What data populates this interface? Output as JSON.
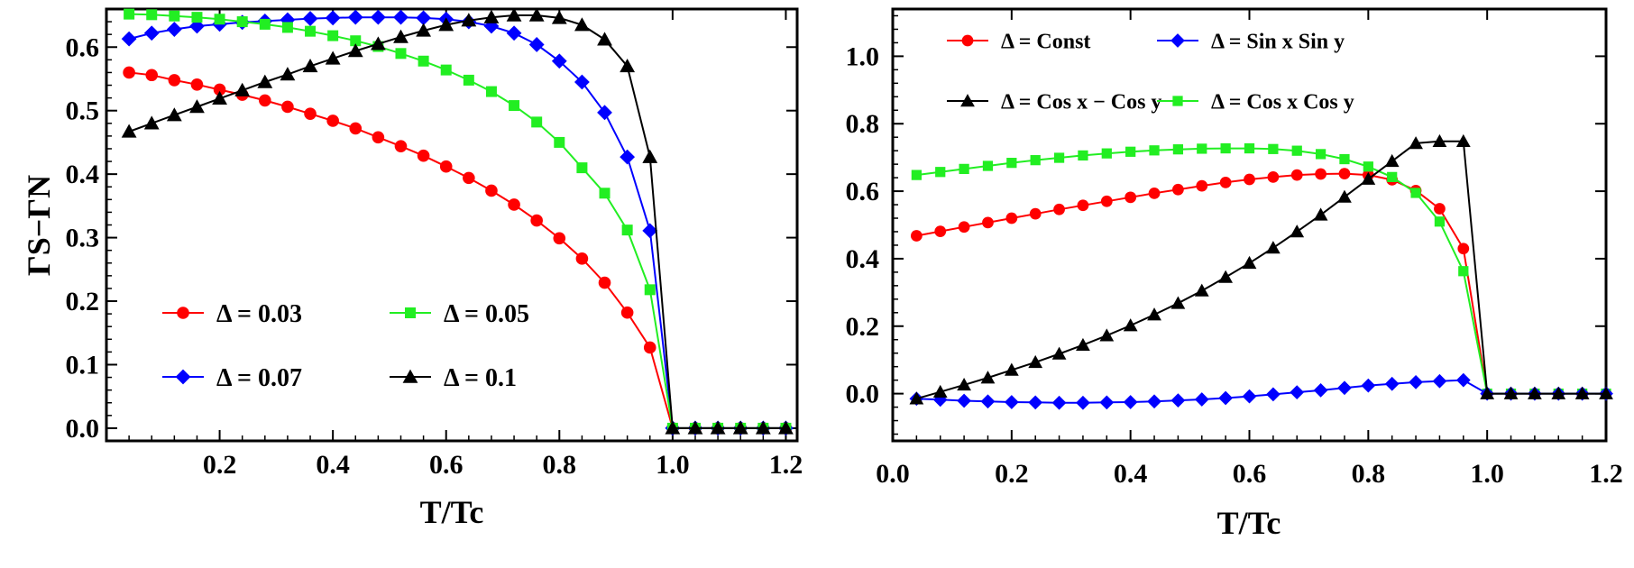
{
  "chart_data": [
    {
      "type": "line",
      "xlim": [
        0,
        1.22
      ],
      "ylim": [
        -0.02,
        0.66
      ],
      "xticks": [
        0.2,
        0.4,
        0.6,
        0.8,
        1.0,
        1.2
      ],
      "xtick_labels": [
        "0.2",
        "0.4",
        "0.6",
        "0.8",
        "1.0",
        "1.2"
      ],
      "yticks": [
        0.0,
        0.1,
        0.2,
        0.3,
        0.4,
        0.5,
        0.6
      ],
      "ytick_labels": [
        "0.0",
        "0.1",
        "0.2",
        "0.3",
        "0.4",
        "0.5",
        "0.6"
      ],
      "xlabel": "T/Tc",
      "ylabel": "ΓS−ΓN",
      "legend": "bottom-left, two columns",
      "series": [
        {
          "name": "Δ = 0.03",
          "color": "#ff0000",
          "marker": "circle",
          "x": [
            0.04,
            0.08,
            0.12,
            0.16,
            0.2,
            0.24,
            0.28,
            0.32,
            0.36,
            0.4,
            0.44,
            0.48,
            0.52,
            0.56,
            0.6,
            0.64,
            0.68,
            0.72,
            0.76,
            0.8,
            0.84,
            0.88,
            0.92,
            0.96,
            1.0,
            1.04,
            1.08,
            1.12,
            1.16,
            1.2
          ],
          "y": [
            0.56,
            0.556,
            0.548,
            0.541,
            0.533,
            0.525,
            0.516,
            0.506,
            0.495,
            0.484,
            0.472,
            0.458,
            0.444,
            0.429,
            0.412,
            0.394,
            0.374,
            0.352,
            0.327,
            0.299,
            0.267,
            0.229,
            0.182,
            0.127,
            0.0,
            0.0,
            0.0,
            0.0,
            0.0,
            0.0
          ]
        },
        {
          "name": "Δ = 0.07",
          "color": "#0000ff",
          "marker": "diamond",
          "x": [
            0.04,
            0.08,
            0.12,
            0.16,
            0.2,
            0.24,
            0.28,
            0.32,
            0.36,
            0.4,
            0.44,
            0.48,
            0.52,
            0.56,
            0.6,
            0.64,
            0.68,
            0.72,
            0.76,
            0.8,
            0.84,
            0.88,
            0.92,
            0.96,
            1.0,
            1.04,
            1.08,
            1.12,
            1.16,
            1.2
          ],
          "y": [
            0.613,
            0.622,
            0.628,
            0.633,
            0.636,
            0.639,
            0.641,
            0.643,
            0.645,
            0.646,
            0.647,
            0.647,
            0.647,
            0.646,
            0.644,
            0.64,
            0.633,
            0.622,
            0.604,
            0.578,
            0.545,
            0.497,
            0.427,
            0.311,
            0.0,
            0.0,
            0.0,
            0.0,
            0.0,
            0.0
          ]
        },
        {
          "name": "Δ = 0.05",
          "color": "#22ee22",
          "marker": "square",
          "x": [
            0.04,
            0.08,
            0.12,
            0.16,
            0.2,
            0.24,
            0.28,
            0.32,
            0.36,
            0.4,
            0.44,
            0.48,
            0.52,
            0.56,
            0.6,
            0.64,
            0.68,
            0.72,
            0.76,
            0.8,
            0.84,
            0.88,
            0.92,
            0.96,
            1.0,
            1.04,
            1.08,
            1.12,
            1.16,
            1.2
          ],
          "y": [
            0.652,
            0.651,
            0.649,
            0.647,
            0.644,
            0.64,
            0.636,
            0.631,
            0.625,
            0.618,
            0.61,
            0.601,
            0.59,
            0.578,
            0.564,
            0.548,
            0.53,
            0.508,
            0.482,
            0.45,
            0.41,
            0.37,
            0.312,
            0.218,
            0.0,
            0.0,
            0.0,
            0.0,
            0.0,
            0.0
          ]
        },
        {
          "name": "Δ = 0.1",
          "color": "#000000",
          "marker": "triangle",
          "x": [
            0.04,
            0.08,
            0.12,
            0.16,
            0.2,
            0.24,
            0.28,
            0.32,
            0.36,
            0.4,
            0.44,
            0.48,
            0.52,
            0.56,
            0.6,
            0.64,
            0.68,
            0.72,
            0.76,
            0.8,
            0.84,
            0.88,
            0.92,
            0.96,
            1.0,
            1.04,
            1.08,
            1.12,
            1.16,
            1.2
          ],
          "y": [
            0.467,
            0.48,
            0.493,
            0.506,
            0.519,
            0.532,
            0.545,
            0.557,
            0.57,
            0.582,
            0.594,
            0.605,
            0.616,
            0.626,
            0.635,
            0.642,
            0.647,
            0.65,
            0.65,
            0.646,
            0.635,
            0.612,
            0.57,
            0.427,
            0.0,
            0.0,
            0.0,
            0.0,
            0.0,
            0.0
          ]
        }
      ]
    },
    {
      "type": "line",
      "xlim": [
        0.0,
        1.2
      ],
      "ylim": [
        -0.14,
        1.14
      ],
      "xticks": [
        0.0,
        0.2,
        0.4,
        0.6,
        0.8,
        1.0,
        1.2
      ],
      "xtick_labels": [
        "0.0",
        "0.2",
        "0.4",
        "0.6",
        "0.8",
        "1.0",
        "1.2"
      ],
      "yticks": [
        0.0,
        0.2,
        0.4,
        0.6,
        0.8,
        1.0
      ],
      "ytick_labels": [
        "0.0",
        "0.2",
        "0.4",
        "0.6",
        "0.8",
        "1.0"
      ],
      "xlabel": "T/Tc",
      "ylabel": "",
      "legend": "top, two columns",
      "series": [
        {
          "name": "Δ = Const",
          "color": "#ff0000",
          "marker": "circle",
          "x": [
            0.04,
            0.08,
            0.12,
            0.16,
            0.2,
            0.24,
            0.28,
            0.32,
            0.36,
            0.4,
            0.44,
            0.48,
            0.52,
            0.56,
            0.6,
            0.64,
            0.68,
            0.72,
            0.76,
            0.8,
            0.84,
            0.88,
            0.92,
            0.96,
            1.0,
            1.04,
            1.08,
            1.12,
            1.16,
            1.2
          ],
          "y": [
            0.468,
            0.481,
            0.494,
            0.507,
            0.52,
            0.533,
            0.546,
            0.558,
            0.57,
            0.582,
            0.594,
            0.605,
            0.616,
            0.626,
            0.635,
            0.642,
            0.648,
            0.651,
            0.652,
            0.648,
            0.634,
            0.602,
            0.548,
            0.43,
            0.0,
            0.0,
            0.0,
            0.0,
            0.0,
            0.0
          ]
        },
        {
          "name": "Δ = Cos x Cos y",
          "color": "#22ee22",
          "marker": "square",
          "x": [
            0.04,
            0.08,
            0.12,
            0.16,
            0.2,
            0.24,
            0.28,
            0.32,
            0.36,
            0.4,
            0.44,
            0.48,
            0.52,
            0.56,
            0.6,
            0.64,
            0.68,
            0.72,
            0.76,
            0.8,
            0.84,
            0.88,
            0.92,
            0.96,
            1.0,
            1.04,
            1.08,
            1.12,
            1.16,
            1.2
          ],
          "y": [
            0.648,
            0.657,
            0.666,
            0.675,
            0.684,
            0.692,
            0.699,
            0.706,
            0.712,
            0.717,
            0.721,
            0.724,
            0.726,
            0.727,
            0.727,
            0.725,
            0.72,
            0.71,
            0.695,
            0.673,
            0.642,
            0.595,
            0.51,
            0.363,
            0.0,
            0.0,
            0.0,
            0.0,
            0.0,
            0.0
          ]
        },
        {
          "name": "Δ = Sin x Sin y",
          "color": "#0000ff",
          "marker": "diamond",
          "x": [
            0.04,
            0.08,
            0.12,
            0.16,
            0.2,
            0.24,
            0.28,
            0.32,
            0.36,
            0.4,
            0.44,
            0.48,
            0.52,
            0.56,
            0.6,
            0.64,
            0.68,
            0.72,
            0.76,
            0.8,
            0.84,
            0.88,
            0.92,
            0.96,
            1.0,
            1.04,
            1.08,
            1.12,
            1.16,
            1.2
          ],
          "y": [
            -0.015,
            -0.018,
            -0.021,
            -0.023,
            -0.025,
            -0.026,
            -0.027,
            -0.027,
            -0.026,
            -0.025,
            -0.023,
            -0.02,
            -0.017,
            -0.013,
            -0.008,
            -0.002,
            0.004,
            0.01,
            0.017,
            0.024,
            0.029,
            0.034,
            0.037,
            0.04,
            0.0,
            0.0,
            0.0,
            0.0,
            0.0,
            0.0
          ]
        },
        {
          "name": "Δ = Cos x − Cos y",
          "color": "#000000",
          "marker": "triangle",
          "x": [
            0.04,
            0.08,
            0.12,
            0.16,
            0.2,
            0.24,
            0.28,
            0.32,
            0.36,
            0.4,
            0.44,
            0.48,
            0.52,
            0.56,
            0.6,
            0.64,
            0.68,
            0.72,
            0.76,
            0.8,
            0.84,
            0.88,
            0.92,
            0.96,
            1.0,
            1.04,
            1.08,
            1.12,
            1.16,
            1.2
          ],
          "y": [
            -0.015,
            0.005,
            0.026,
            0.047,
            0.07,
            0.093,
            0.118,
            0.144,
            0.172,
            0.202,
            0.234,
            0.268,
            0.305,
            0.345,
            0.387,
            0.432,
            0.48,
            0.53,
            0.583,
            0.636,
            0.689,
            0.742,
            0.748,
            0.748,
            0.0,
            0.0,
            0.0,
            0.0,
            0.0,
            0.0
          ]
        }
      ]
    }
  ]
}
